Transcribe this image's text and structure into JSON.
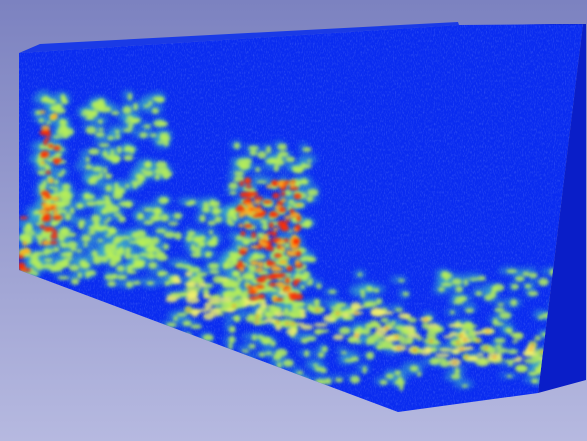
{
  "viewer": {
    "background_top": "#7c82c0",
    "background_bottom": "#b6b9e0",
    "volume": {
      "colormap": "jet",
      "low_color": "#0a2cf0",
      "mid_color": "#b6ee58",
      "high_color": "#ff2a00",
      "side_face_color": "#0a1ec8",
      "top_face_color": "#0f2ee0"
    }
  }
}
